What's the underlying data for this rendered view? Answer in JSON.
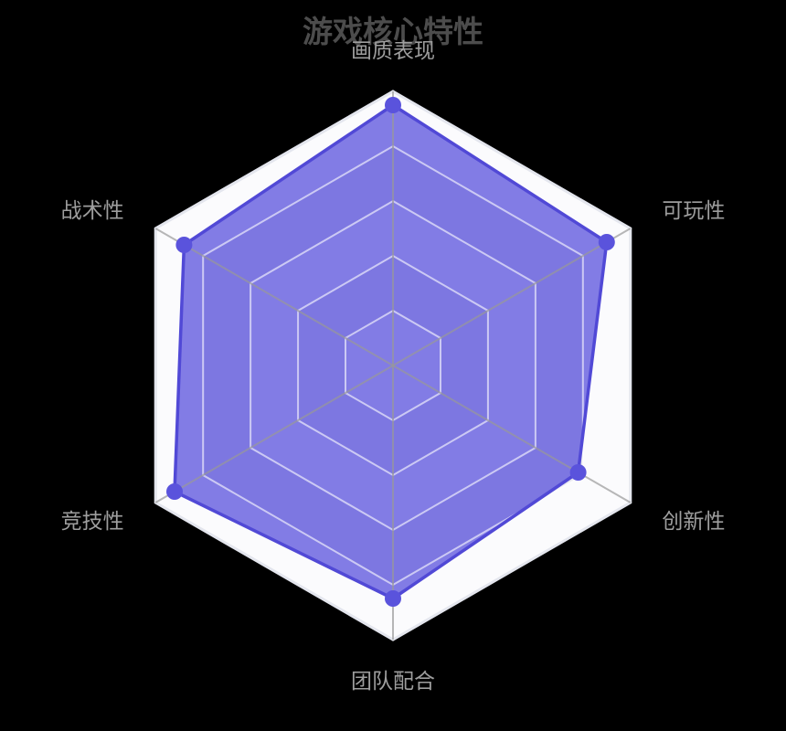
{
  "chart_data": {
    "type": "radar",
    "title": "游戏核心特性",
    "levels": 5,
    "max": 100,
    "indicators": [
      {
        "name": "画质表现",
        "max": 100
      },
      {
        "name": "可玩性",
        "max": 100
      },
      {
        "name": "创新性",
        "max": 100
      },
      {
        "name": "团队配合",
        "max": 100
      },
      {
        "name": "竞技性",
        "max": 100
      },
      {
        "name": "战术性",
        "max": 100
      }
    ],
    "series": [
      {
        "values": [
          95,
          90,
          78,
          85,
          92,
          88
        ]
      }
    ],
    "legend_position": "none",
    "grid": true,
    "colors": {
      "background": "#000000",
      "title": "#4c4c4c",
      "axis_label": "#9e9e9e",
      "accent_border": "#5149d6",
      "accent_dot": "#5a53dc",
      "fill": "rgba(88,79,220,0.74)",
      "band_light": "#fbfbfd",
      "band_dark": "#e7e7ee",
      "ring_line": "rgba(255,255,255,0.6)",
      "axis_line": "rgba(153,153,153,0.7)",
      "outer_border": "#e4e6ee"
    }
  }
}
